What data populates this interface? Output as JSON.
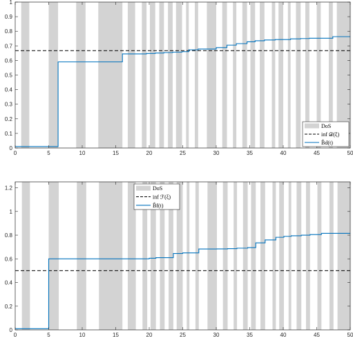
{
  "chart_data": [
    {
      "type": "line",
      "xlim": [
        0,
        50
      ],
      "ylim": [
        0,
        1
      ],
      "xticks": [
        0,
        5,
        10,
        15,
        20,
        25,
        30,
        35,
        40,
        45,
        50
      ],
      "xtick_labels": [
        "0",
        "5",
        "10",
        "15",
        "20",
        "25",
        "30",
        "35",
        "40",
        "45",
        "50"
      ],
      "yticks": [
        0,
        0.1,
        0.2,
        0.3,
        0.4,
        0.5,
        0.6,
        0.7,
        0.8,
        0.9,
        1
      ],
      "ytick_labels": [
        "0",
        "0.1",
        "0.2",
        "0.3",
        "0.4",
        "0.5",
        "0.6",
        "0.7",
        "0.8",
        "0.9",
        "1"
      ],
      "grid": false,
      "legend_position": "bottom-right",
      "dos_color": "#d3d3d3",
      "dos_intervals": [
        [
          0.9,
          2.1
        ],
        [
          5.0,
          6.4
        ],
        [
          9.1,
          10.5
        ],
        [
          12.4,
          16.0
        ],
        [
          16.8,
          17.9
        ],
        [
          18.9,
          19.6
        ],
        [
          20.1,
          20.9
        ],
        [
          21.5,
          22.2
        ],
        [
          22.8,
          23.5
        ],
        [
          24.0,
          24.9
        ],
        [
          25.5,
          25.9
        ],
        [
          26.8,
          27.3
        ],
        [
          28.6,
          30.0
        ],
        [
          30.9,
          31.6
        ],
        [
          32.5,
          33.0
        ],
        [
          33.9,
          34.6
        ],
        [
          35.1,
          35.8
        ],
        [
          36.5,
          37.2
        ],
        [
          38.3,
          38.8
        ],
        [
          39.3,
          40.0
        ],
        [
          40.7,
          41.1
        ],
        [
          41.9,
          42.6
        ],
        [
          43.3,
          43.9
        ],
        [
          45.0,
          45.6
        ],
        [
          46.8,
          47.4
        ],
        [
          48.0,
          50.0
        ]
      ],
      "legend": [
        {
          "label": "DoS",
          "style": "patch",
          "color": "#d3d3d3"
        },
        {
          "label": "inf 𝒟(ξ)",
          "style": "dashed",
          "color": "#000000"
        },
        {
          "label": "B̂d(t)",
          "style": "solid",
          "color": "#0072bd"
        }
      ],
      "series": [
        {
          "style": "dashed",
          "color": "#000000",
          "x": [
            0,
            50
          ],
          "y": [
            0.667,
            0.667
          ]
        },
        {
          "style": "step",
          "color": "#0072bd",
          "x": [
            0,
            6.4,
            16.0,
            19.6,
            20.9,
            22.2,
            23.5,
            24.9,
            25.9,
            27.3,
            30.0,
            31.6,
            33.0,
            34.6,
            35.8,
            37.2,
            38.8,
            41.1,
            42.6,
            43.9,
            47.4,
            50
          ],
          "y": [
            0.01,
            0.59,
            0.645,
            0.648,
            0.651,
            0.654,
            0.657,
            0.66,
            0.673,
            0.678,
            0.688,
            0.705,
            0.715,
            0.728,
            0.735,
            0.74,
            0.743,
            0.748,
            0.75,
            0.752,
            0.763,
            0.763
          ]
        }
      ]
    },
    {
      "type": "line",
      "xlim": [
        0,
        50
      ],
      "ylim": [
        0,
        1.25
      ],
      "xticks": [
        0,
        5,
        10,
        15,
        20,
        25,
        30,
        35,
        40,
        45,
        50
      ],
      "xtick_labels": [
        "0",
        "5",
        "10",
        "15",
        "20",
        "25",
        "30",
        "35",
        "40",
        "45",
        "50"
      ],
      "yticks": [
        0,
        0.2,
        0.4,
        0.6,
        0.8,
        1,
        1.2
      ],
      "ytick_labels": [
        "0",
        "0.2",
        "0.4",
        "0.6",
        "0.8",
        "1",
        "1.2"
      ],
      "grid": false,
      "legend_position": "top-center",
      "dos_color": "#d3d3d3",
      "dos_intervals": [
        [
          1.0,
          2.2
        ],
        [
          5.0,
          6.5
        ],
        [
          9.2,
          10.6
        ],
        [
          12.5,
          16.0
        ],
        [
          16.8,
          18.0
        ],
        [
          19.0,
          19.7
        ],
        [
          20.2,
          21.0
        ],
        [
          21.6,
          22.3
        ],
        [
          22.9,
          23.6
        ],
        [
          24.1,
          25.0
        ],
        [
          25.6,
          26.0
        ],
        [
          26.9,
          27.4
        ],
        [
          28.7,
          30.1
        ],
        [
          31.0,
          31.7
        ],
        [
          32.6,
          33.1
        ],
        [
          34.0,
          34.7
        ],
        [
          35.2,
          35.9
        ],
        [
          36.6,
          37.3
        ],
        [
          38.4,
          38.9
        ],
        [
          39.4,
          40.1
        ],
        [
          40.8,
          41.2
        ],
        [
          42.0,
          42.7
        ],
        [
          43.4,
          44.0
        ],
        [
          45.1,
          45.7
        ],
        [
          46.9,
          47.5
        ],
        [
          48.1,
          50.0
        ]
      ],
      "legend": [
        {
          "label": "DoS",
          "style": "patch",
          "color": "#d3d3d3"
        },
        {
          "label": "inf ℱ(ξ)",
          "style": "dashed",
          "color": "#000000"
        },
        {
          "label": "B̂f(t)",
          "style": "solid",
          "color": "#0072bd"
        }
      ],
      "series": [
        {
          "style": "dashed",
          "color": "#000000",
          "x": [
            0,
            50
          ],
          "y": [
            0.5,
            0.5
          ]
        },
        {
          "style": "step",
          "color": "#0072bd",
          "x": [
            0,
            5.0,
            20.0,
            21.0,
            23.6,
            25.0,
            27.4,
            30.1,
            31.7,
            33.1,
            34.7,
            35.9,
            37.3,
            38.9,
            40.1,
            41.2,
            42.7,
            44.0,
            45.7,
            50
          ],
          "y": [
            0.01,
            0.6,
            0.605,
            0.61,
            0.645,
            0.65,
            0.683,
            0.684,
            0.686,
            0.69,
            0.695,
            0.735,
            0.76,
            0.782,
            0.79,
            0.795,
            0.8,
            0.805,
            0.815,
            0.815
          ]
        }
      ]
    }
  ]
}
